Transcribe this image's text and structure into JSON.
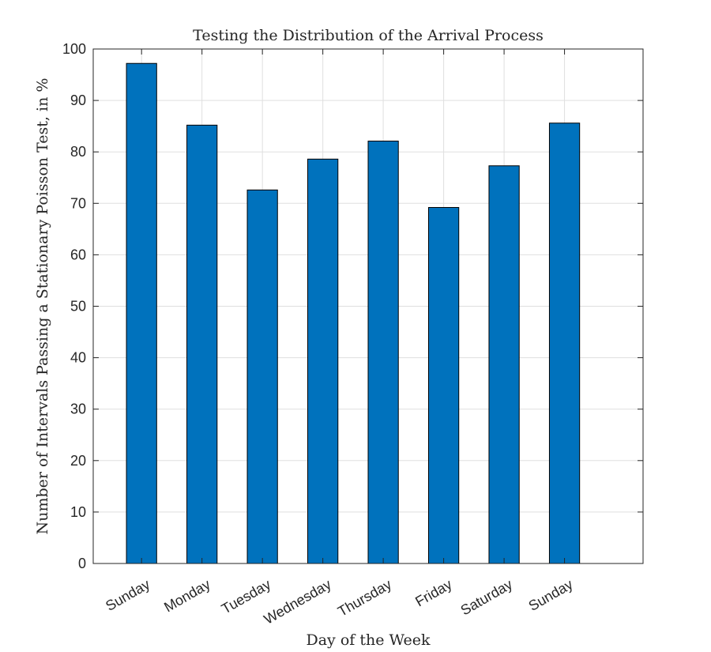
{
  "chart_data": {
    "type": "bar",
    "title": "Testing the Distribution of the Arrival Process",
    "xlabel": "Day of the Week",
    "ylabel": "Number of Intervals Passing a Stationary Poisson Test, in %",
    "categories": [
      "Sunday",
      "Monday",
      "Tuesday",
      "Wednesday",
      "Thursday",
      "Friday",
      "Saturday",
      "Sunday"
    ],
    "values": [
      97.2,
      85.2,
      72.6,
      78.6,
      82.1,
      69.2,
      77.3,
      85.6
    ],
    "ylim": [
      0,
      100
    ],
    "yticks": [
      0,
      10,
      20,
      30,
      40,
      50,
      60,
      70,
      80,
      90,
      100
    ],
    "xlim": [
      0.2,
      9.3
    ],
    "grid": true,
    "bar_color": "#0072BD",
    "tick_label_rotation": "30deg"
  }
}
